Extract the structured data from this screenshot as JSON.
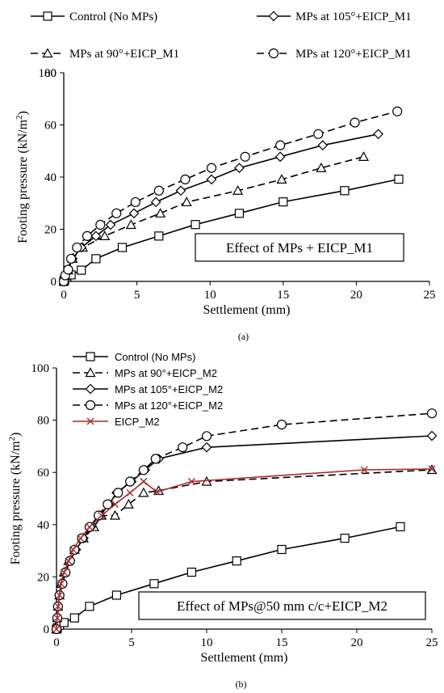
{
  "chart_data": [
    {
      "type": "line",
      "panel_label": "(a)",
      "xlabel": "Settlement (mm)",
      "ylabel": "Footing pressure (kN/m",
      "ylabel_sup": "2",
      "ylabel_close": ")",
      "xlim": [
        0,
        25
      ],
      "ylim": [
        0,
        80
      ],
      "y_axis_extends_to": 100,
      "xticks": [
        0,
        5,
        10,
        15,
        20,
        25
      ],
      "yticks": [
        0,
        20,
        40,
        60,
        80,
        100
      ],
      "annotation": "Effect of MPs + EICP_M1",
      "legend_placement": "top, outside plot area (2 columns)",
      "grid": false,
      "series": [
        {
          "name": "Control (No MPs)",
          "marker": "square",
          "dash": "solid",
          "x": [
            0,
            0.05,
            0.2,
            0.5,
            1.2,
            2.2,
            4.0,
            6.5,
            9.0,
            12.0,
            15.0,
            19.2,
            22.9
          ],
          "y": [
            0,
            0.5,
            1.5,
            2.5,
            4.3,
            8.7,
            13.0,
            17.4,
            21.8,
            26.1,
            30.5,
            34.8,
            39.2
          ]
        },
        {
          "name": "MPs at 90°+EICP_M1",
          "marker": "triangle",
          "dash": "dashed",
          "x": [
            0,
            0.1,
            0.3,
            0.6,
            1.3,
            2.8,
            4.6,
            6.6,
            8.4,
            11.9,
            14.9,
            17.6,
            20.5
          ],
          "y": [
            0,
            2.0,
            4.3,
            8.7,
            13.0,
            17.4,
            21.7,
            26.1,
            30.4,
            34.8,
            39.1,
            43.5,
            47.8
          ]
        },
        {
          "name": "MPs at 105°+EICP_M1",
          "marker": "diamond",
          "dash": "solid",
          "x": [
            0,
            0.1,
            0.3,
            0.6,
            1.2,
            2.2,
            3.2,
            4.8,
            6.3,
            8.0,
            10.1,
            12.0,
            14.8,
            17.7,
            21.5
          ],
          "y": [
            0,
            2.5,
            4.5,
            8.7,
            13.0,
            17.4,
            21.7,
            26.1,
            30.4,
            34.8,
            39.1,
            43.5,
            47.8,
            52.2,
            56.5
          ]
        },
        {
          "name": "MPs at 120°+EICP_M1",
          "marker": "circle",
          "dash": "dashed",
          "x": [
            0,
            0.1,
            0.3,
            0.5,
            0.9,
            1.6,
            2.5,
            3.6,
            4.9,
            6.5,
            8.3,
            10.1,
            12.4,
            14.8,
            17.4,
            19.9,
            22.8
          ],
          "y": [
            0,
            2.3,
            4.5,
            8.7,
            13.0,
            17.4,
            21.7,
            26.1,
            30.4,
            34.8,
            39.1,
            43.5,
            47.8,
            52.2,
            56.5,
            60.9,
            65.2
          ]
        }
      ]
    },
    {
      "type": "line",
      "panel_label": "(b)",
      "xlabel": "Settlement (mm)",
      "ylabel": "Footing pressure (kN/m",
      "ylabel_sup": "2",
      "ylabel_close": ")",
      "xlim": [
        0,
        25
      ],
      "ylim": [
        0,
        100
      ],
      "xticks": [
        0,
        5,
        10,
        15,
        20,
        25
      ],
      "yticks": [
        0,
        20,
        40,
        60,
        80,
        100
      ],
      "annotation": "Effect of MPs@50 mm c/c+EICP_M2",
      "legend_placement": "top-left, inside plot area",
      "grid": false,
      "series": [
        {
          "name": "Control (No MPs)",
          "marker": "square",
          "dash": "solid",
          "color": "#000000",
          "x": [
            0,
            0.05,
            0.2,
            0.5,
            1.2,
            2.2,
            4.0,
            6.5,
            9.0,
            12.0,
            15.0,
            19.2,
            22.9
          ],
          "y": [
            0,
            0.5,
            1.5,
            2.5,
            4.3,
            8.7,
            13.0,
            17.4,
            21.8,
            26.1,
            30.5,
            34.8,
            39.2
          ]
        },
        {
          "name": "MPs at 90°+EICP_M2",
          "marker": "triangle",
          "dash": "dashed",
          "color": "#000000",
          "x": [
            0,
            0.05,
            0.1,
            0.2,
            0.3,
            0.5,
            0.8,
            1.2,
            1.8,
            2.5,
            3.0,
            3.9,
            4.8,
            5.8,
            6.8,
            10.0,
            25.0
          ],
          "y": [
            0,
            4.3,
            8.7,
            13.0,
            17.4,
            21.7,
            26.1,
            30.4,
            34.8,
            39.1,
            43.5,
            43.5,
            47.8,
            52.2,
            53.0,
            56.5,
            61.0
          ]
        },
        {
          "name": "MPs at 105°+EICP_M2",
          "marker": "diamond",
          "dash": "solid",
          "color": "#000000",
          "x": [
            0,
            0.05,
            0.1,
            0.2,
            0.4,
            0.6,
            0.9,
            1.3,
            1.8,
            2.3,
            2.9,
            3.5,
            4.0,
            5.0,
            5.9,
            6.8,
            10.0,
            25.0
          ],
          "y": [
            0,
            4.3,
            8.7,
            13.0,
            17.4,
            21.7,
            26.1,
            30.4,
            34.8,
            39.1,
            43.5,
            47.8,
            52.2,
            56.5,
            60.9,
            65.2,
            69.6,
            74.0
          ]
        },
        {
          "name": "MPs at 120°+EICP_M2",
          "marker": "circle",
          "dash": "dashed",
          "color": "#000000",
          "x": [
            0,
            0.05,
            0.1,
            0.2,
            0.4,
            0.6,
            0.9,
            1.2,
            1.7,
            2.2,
            2.8,
            3.4,
            4.1,
            4.9,
            5.8,
            6.6,
            8.4,
            10.0,
            15.0,
            25.0
          ],
          "y": [
            0,
            4.3,
            8.7,
            13.0,
            17.4,
            21.7,
            26.1,
            30.4,
            34.8,
            39.1,
            43.5,
            47.8,
            52.2,
            56.5,
            60.9,
            65.2,
            69.6,
            73.9,
            78.3,
            82.6
          ]
        },
        {
          "name": "EICP_M2",
          "marker": "x",
          "dash": "solid",
          "color": "#a52a2a",
          "x": [
            0,
            0.05,
            0.1,
            0.2,
            0.3,
            0.5,
            0.8,
            1.1,
            1.6,
            2.2,
            3.0,
            3.9,
            4.9,
            5.8,
            6.7,
            9.0,
            20.5,
            25.0
          ],
          "y": [
            0,
            4.3,
            8.7,
            13.0,
            17.4,
            21.7,
            26.1,
            30.4,
            34.8,
            39.1,
            43.5,
            47.8,
            52.2,
            56.5,
            52.5,
            56.5,
            61.0,
            61.3
          ]
        }
      ]
    }
  ]
}
